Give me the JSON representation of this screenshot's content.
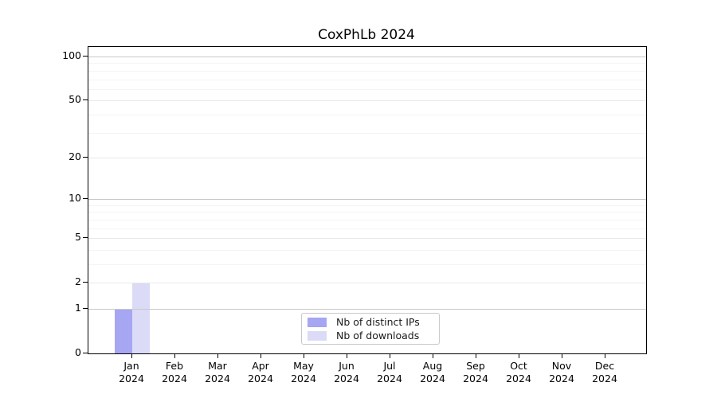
{
  "chart_data": {
    "type": "bar",
    "title": "CoxPhLb 2024",
    "categories": [
      "Jan 2024",
      "Feb 2024",
      "Mar 2024",
      "Apr 2024",
      "May 2024",
      "Jun 2024",
      "Jul 2024",
      "Aug 2024",
      "Sep 2024",
      "Oct 2024",
      "Nov 2024",
      "Dec 2024"
    ],
    "months": [
      "Jan",
      "Feb",
      "Mar",
      "Apr",
      "May",
      "Jun",
      "Jul",
      "Aug",
      "Sep",
      "Oct",
      "Nov",
      "Dec"
    ],
    "year_label": "2024",
    "series": [
      {
        "name": "Nb of distinct IPs",
        "color": "#a6a6f2",
        "values": [
          1,
          0,
          0,
          0,
          0,
          0,
          0,
          0,
          0,
          0,
          0,
          0
        ]
      },
      {
        "name": "Nb of downloads",
        "color": "#dbdbf7",
        "values": [
          2,
          0,
          0,
          0,
          0,
          0,
          0,
          0,
          0,
          0,
          0,
          0
        ]
      }
    ],
    "y_scale": "log1p",
    "y_ticks": [
      0,
      1,
      2,
      5,
      10,
      20,
      50,
      100
    ],
    "y_minor_gridlines": [
      3,
      4,
      6,
      7,
      8,
      9,
      30,
      40,
      60,
      70,
      80,
      90
    ],
    "ylim": [
      0,
      115
    ],
    "xlabel": "",
    "ylabel": "",
    "grid": true,
    "legend_position": "bottom-center",
    "colors": {
      "axis": "#000000",
      "grid_major_power10": "#c8c8c8",
      "grid_major_other": "#e9e9e9",
      "grid_minor": "#f4f4f4",
      "background": "#ffffff"
    }
  }
}
